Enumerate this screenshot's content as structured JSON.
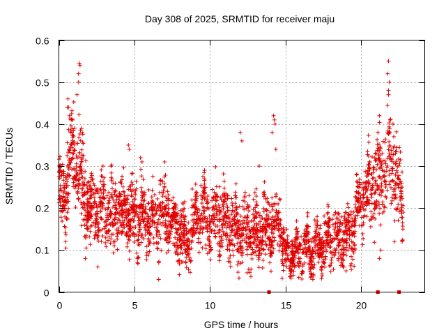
{
  "chart_data": {
    "type": "scatter",
    "title": "Day 308 of 2025, SRMTID for receiver maju",
    "xlabel": "GPS time / hours",
    "ylabel": "SRMTID / TECUs",
    "xlim": [
      0,
      24.2
    ],
    "ylim": [
      0,
      0.6
    ],
    "xticks": [
      0,
      5,
      10,
      15,
      20
    ],
    "yticks": [
      0,
      0.1,
      0.2,
      0.3,
      0.4,
      0.5,
      0.6
    ],
    "xtick_labels": [
      "0",
      "5",
      "10",
      "15",
      "20"
    ],
    "ytick_labels": [
      "0",
      "0.1",
      "0.2",
      "0.3",
      "0.4",
      "0.5",
      "0.6"
    ],
    "grid": true,
    "marker": "+",
    "color": "#e00000",
    "trend": [
      [
        0.0,
        0.24
      ],
      [
        0.4,
        0.22
      ],
      [
        0.8,
        0.34
      ],
      [
        1.2,
        0.3
      ],
      [
        1.6,
        0.25
      ],
      [
        2.0,
        0.2
      ],
      [
        3.0,
        0.19
      ],
      [
        4.0,
        0.19
      ],
      [
        5.0,
        0.19
      ],
      [
        6.0,
        0.17
      ],
      [
        7.0,
        0.19
      ],
      [
        8.0,
        0.14
      ],
      [
        8.5,
        0.11
      ],
      [
        9.0,
        0.17
      ],
      [
        9.5,
        0.19
      ],
      [
        10.0,
        0.18
      ],
      [
        11.0,
        0.17
      ],
      [
        12.0,
        0.14
      ],
      [
        13.0,
        0.15
      ],
      [
        13.9,
        0.15
      ],
      [
        14.5,
        0.17
      ],
      [
        15.0,
        0.09
      ],
      [
        16.0,
        0.09
      ],
      [
        17.0,
        0.1
      ],
      [
        18.0,
        0.13
      ],
      [
        19.0,
        0.13
      ],
      [
        19.5,
        0.16
      ],
      [
        20.0,
        0.23
      ],
      [
        21.0,
        0.26
      ],
      [
        21.5,
        0.3
      ],
      [
        22.0,
        0.31
      ],
      [
        22.4,
        0.25
      ],
      [
        22.8,
        0.21
      ]
    ],
    "spread": [
      [
        0.0,
        0.03
      ],
      [
        1.0,
        0.055
      ],
      [
        2.0,
        0.04
      ],
      [
        5.0,
        0.04
      ],
      [
        8.5,
        0.03
      ],
      [
        10.0,
        0.04
      ],
      [
        14.0,
        0.035
      ],
      [
        15.5,
        0.02
      ],
      [
        18.0,
        0.03
      ],
      [
        20.0,
        0.04
      ],
      [
        21.5,
        0.06
      ],
      [
        22.8,
        0.035
      ]
    ],
    "density_points_per_hour": 130,
    "x_extent": [
      0.0,
      22.8
    ],
    "outliers": [
      {
        "x": 0.05,
        "y": 0.29
      },
      {
        "x": 0.1,
        "y": 0.29
      },
      {
        "x": 0.45,
        "y": 0.12
      },
      {
        "x": 0.55,
        "y": 0.44
      },
      {
        "x": 0.6,
        "y": 0.46
      },
      {
        "x": 0.65,
        "y": 0.44
      },
      {
        "x": 0.7,
        "y": 0.42
      },
      {
        "x": 1.2,
        "y": 0.47
      },
      {
        "x": 1.3,
        "y": 0.52
      },
      {
        "x": 1.35,
        "y": 0.545
      },
      {
        "x": 1.4,
        "y": 0.54
      },
      {
        "x": 1.3,
        "y": 0.5
      },
      {
        "x": 1.5,
        "y": 0.39
      },
      {
        "x": 1.55,
        "y": 0.38
      },
      {
        "x": 1.75,
        "y": 0.08
      },
      {
        "x": 4.6,
        "y": 0.35
      },
      {
        "x": 4.65,
        "y": 0.34
      },
      {
        "x": 5.4,
        "y": 0.32
      },
      {
        "x": 5.5,
        "y": 0.31
      },
      {
        "x": 5.2,
        "y": 0.08
      },
      {
        "x": 6.6,
        "y": 0.07
      },
      {
        "x": 6.6,
        "y": 0.03
      },
      {
        "x": 7.0,
        "y": 0.31
      },
      {
        "x": 12.0,
        "y": 0.38
      },
      {
        "x": 12.1,
        "y": 0.36
      },
      {
        "x": 13.25,
        "y": 0.3
      },
      {
        "x": 13.95,
        "y": 0.07
      },
      {
        "x": 14.2,
        "y": 0.42
      },
      {
        "x": 14.25,
        "y": 0.41
      },
      {
        "x": 14.3,
        "y": 0.4
      },
      {
        "x": 14.1,
        "y": 0.38
      },
      {
        "x": 14.35,
        "y": 0.34
      },
      {
        "x": 15.5,
        "y": 0.04
      },
      {
        "x": 21.1,
        "y": 0.38
      },
      {
        "x": 21.2,
        "y": 0.42
      },
      {
        "x": 21.3,
        "y": 0.1
      },
      {
        "x": 21.4,
        "y": 0.29
      },
      {
        "x": 21.8,
        "y": 0.48
      },
      {
        "x": 21.85,
        "y": 0.5
      },
      {
        "x": 21.8,
        "y": 0.55
      },
      {
        "x": 21.75,
        "y": 0.52
      },
      {
        "x": 21.8,
        "y": 0.47
      },
      {
        "x": 21.9,
        "y": 0.41
      },
      {
        "x": 22.1,
        "y": 0.4
      },
      {
        "x": 22.15,
        "y": 0.37
      },
      {
        "x": 21.2,
        "y": 0.08
      },
      {
        "x": 22.2,
        "y": 0.12
      },
      {
        "x": 22.7,
        "y": 0.12
      },
      {
        "x": 22.75,
        "y": 0.15
      },
      {
        "x": 22.7,
        "y": 0.25
      }
    ],
    "zero_markers": [
      {
        "x": 13.9,
        "y": 0.0
      },
      {
        "x": 21.1,
        "y": 0.0
      },
      {
        "x": 22.5,
        "y": 0.0
      }
    ]
  }
}
